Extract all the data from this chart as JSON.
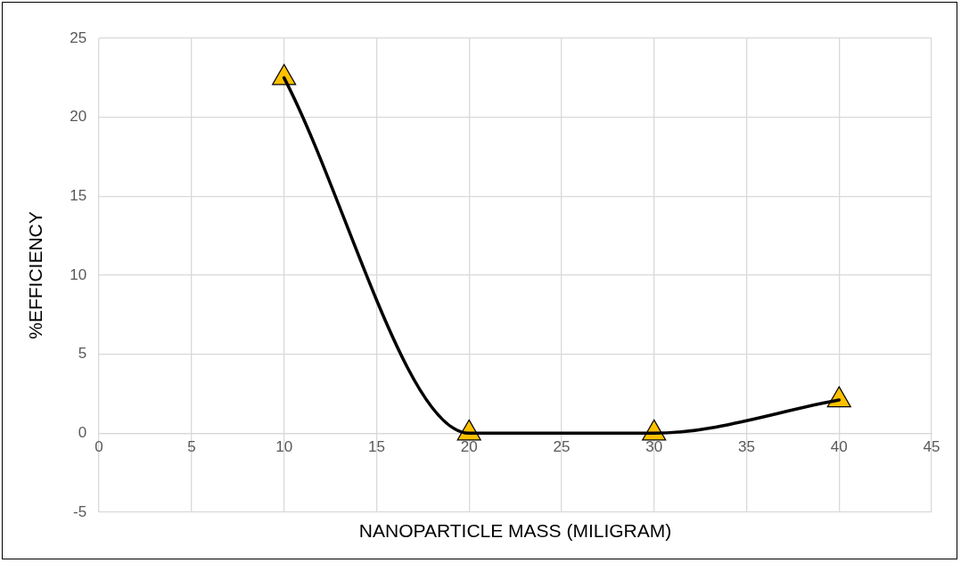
{
  "chart_data": {
    "type": "line",
    "xlabel": "NANOPARTICLE MASS (MILIGRAM)",
    "ylabel": "%EFFICIENCY",
    "x": [
      10,
      20,
      30,
      40
    ],
    "series": [
      {
        "color": "#000000",
        "colors": [
          "#ffc000",
          "#ffc000",
          "#ffc000",
          "#ffc000"
        ],
        "values": [
          22.5,
          0,
          0,
          2.1
        ]
      }
    ],
    "marker": "triangle",
    "xlim": [
      0,
      45
    ],
    "xticks": [
      0,
      5,
      10,
      15,
      20,
      25,
      30,
      35,
      40,
      45
    ],
    "ylim": [
      -5,
      25
    ],
    "yticks": [
      -5,
      0,
      5,
      10,
      15,
      20,
      25
    ],
    "grid": true
  }
}
